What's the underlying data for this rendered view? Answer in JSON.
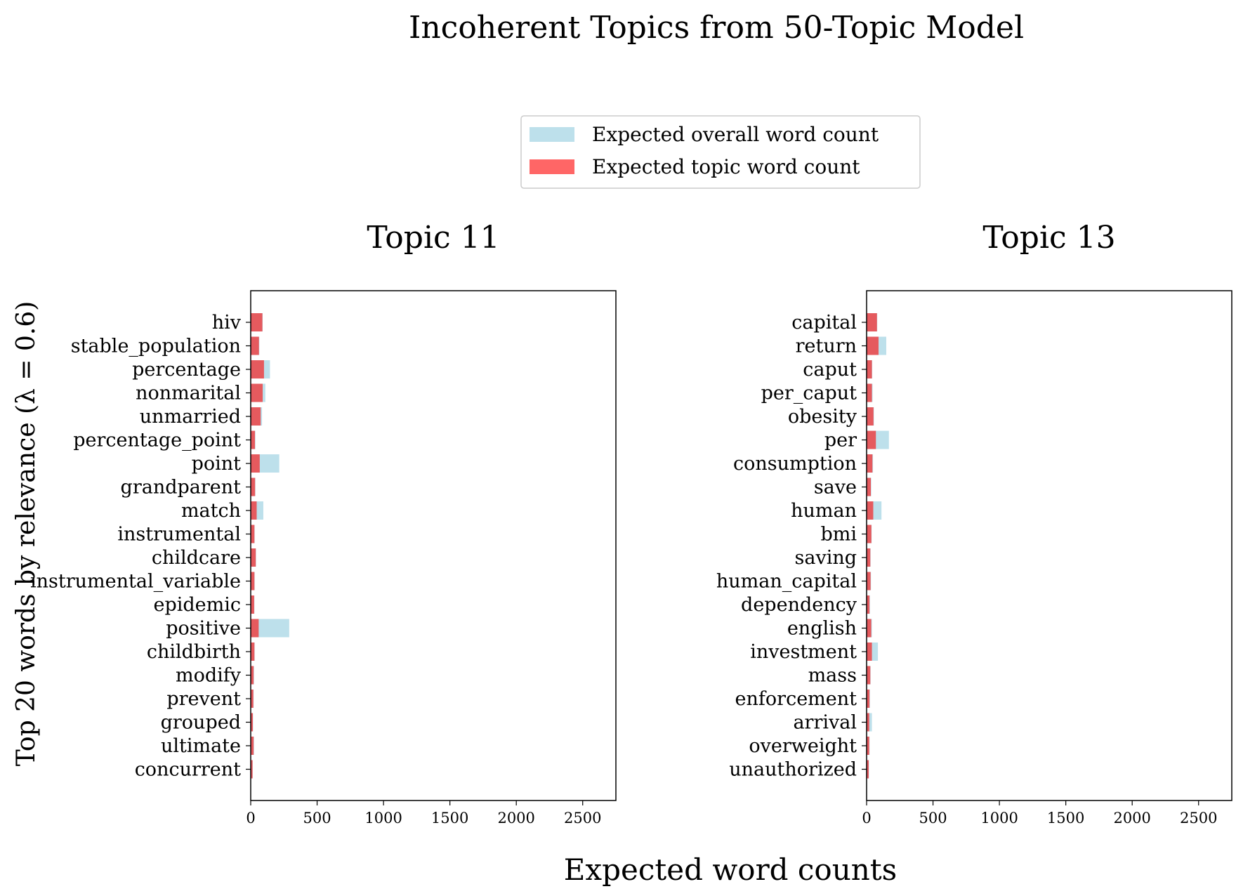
{
  "figure": {
    "title": "Incoherent Topics from 50-Topic Model",
    "xlabel": "Expected word counts",
    "ylabel": "Top 20 words by relevance (λ = 0.6)",
    "legend": {
      "placement": "top-center",
      "entries": [
        {
          "label": "Expected overall word count",
          "color": "#add8e6"
        },
        {
          "label": "Expected topic word count",
          "color": "#ff0000"
        }
      ]
    }
  },
  "chart_data": [
    {
      "type": "bar",
      "orientation": "horizontal",
      "title": "Topic 11",
      "xlim": [
        0,
        2750
      ],
      "xticks": [
        0,
        500,
        1000,
        1500,
        2000,
        2500
      ],
      "categories": [
        "hiv",
        "stable_population",
        "percentage",
        "nonmarital",
        "unmarried",
        "percentage_point",
        "point",
        "grandparent",
        "match",
        "instrumental",
        "childcare",
        "instrumental_variable",
        "epidemic",
        "positive",
        "childbirth",
        "modify",
        "prevent",
        "grouped",
        "ultimate",
        "concurrent"
      ],
      "series": [
        {
          "name": "Expected overall word count",
          "values": [
            90,
            65,
            145,
            110,
            85,
            35,
            215,
            35,
            95,
            30,
            40,
            30,
            28,
            290,
            30,
            25,
            22,
            18,
            25,
            15
          ]
        },
        {
          "name": "Expected topic word count",
          "values": [
            88,
            62,
            100,
            90,
            75,
            32,
            68,
            33,
            45,
            28,
            38,
            28,
            26,
            60,
            28,
            22,
            20,
            16,
            22,
            14
          ]
        }
      ]
    },
    {
      "type": "bar",
      "orientation": "horizontal",
      "title": "Topic 13",
      "xlim": [
        0,
        2750
      ],
      "xticks": [
        0,
        500,
        1000,
        1500,
        2000,
        2500
      ],
      "categories": [
        "capital",
        "return",
        "caput",
        "per_caput",
        "obesity",
        "per",
        "consumption",
        "save",
        "human",
        "bmi",
        "saving",
        "human_capital",
        "dependency",
        "english",
        "investment",
        "mass",
        "enforcement",
        "arrival",
        "overweight",
        "unauthorized"
      ],
      "series": [
        {
          "name": "Expected overall word count",
          "values": [
            80,
            148,
            42,
            45,
            55,
            168,
            48,
            35,
            112,
            38,
            30,
            33,
            25,
            40,
            85,
            30,
            25,
            40,
            22,
            18
          ]
        },
        {
          "name": "Expected topic word count",
          "values": [
            78,
            90,
            40,
            40,
            52,
            70,
            44,
            32,
            50,
            36,
            28,
            30,
            22,
            35,
            40,
            28,
            22,
            20,
            20,
            16
          ]
        }
      ]
    }
  ]
}
